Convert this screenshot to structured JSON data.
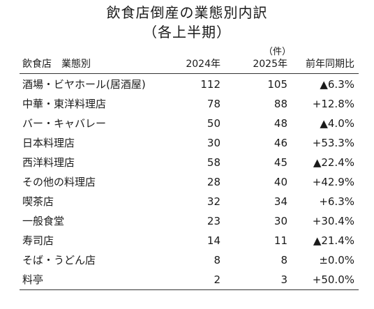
{
  "title": "飲食店倒産の業態別内訳",
  "subtitle": "（各上半期）",
  "unit": "（件）",
  "table": {
    "headers": {
      "name": "飲食店　業態別",
      "y2024": "2024年",
      "y2025": "2025年",
      "ratio": "前年同期比"
    },
    "rows": [
      {
        "name": "酒場・ビヤホール(居酒屋)",
        "y2024": "112",
        "y2025": "105",
        "ratio": "▲6.3%"
      },
      {
        "name": "中華・東洋料理店",
        "y2024": "78",
        "y2025": "88",
        "ratio": "+12.8%"
      },
      {
        "name": "バー・キャバレー",
        "y2024": "50",
        "y2025": "48",
        "ratio": "▲4.0%"
      },
      {
        "name": "日本料理店",
        "y2024": "30",
        "y2025": "46",
        "ratio": "+53.3%"
      },
      {
        "name": "西洋料理店",
        "y2024": "58",
        "y2025": "45",
        "ratio": "▲22.4%"
      },
      {
        "name": "その他の料理店",
        "y2024": "28",
        "y2025": "40",
        "ratio": "+42.9%"
      },
      {
        "name": "喫茶店",
        "y2024": "32",
        "y2025": "34",
        "ratio": "+6.3%"
      },
      {
        "name": "一般食堂",
        "y2024": "23",
        "y2025": "30",
        "ratio": "+30.4%"
      },
      {
        "name": "寿司店",
        "y2024": "14",
        "y2025": "11",
        "ratio": "▲21.4%"
      },
      {
        "name": "そば・うどん店",
        "y2024": "8",
        "y2025": "8",
        "ratio": "±0.0%"
      },
      {
        "name": "料亭",
        "y2024": "2",
        "y2025": "3",
        "ratio": "+50.0%"
      }
    ]
  }
}
